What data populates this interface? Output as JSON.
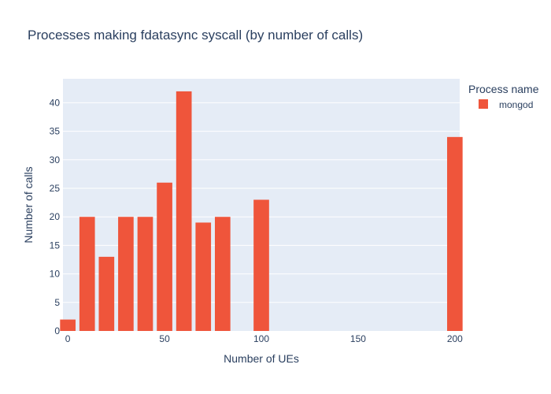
{
  "chart_data": {
    "type": "bar",
    "title": "Processes making fdatasync syscall (by number of calls)",
    "xlabel": "Number of UEs",
    "ylabel": "Number of calls",
    "xlim": [
      -2.5,
      202.5
    ],
    "ylim": [
      0,
      44.2
    ],
    "xticks": [
      0,
      50,
      100,
      150,
      200
    ],
    "yticks": [
      0,
      5,
      10,
      15,
      20,
      25,
      30,
      35,
      40
    ],
    "grid": true,
    "legend": {
      "title": "Process name",
      "placement": "right"
    },
    "series": [
      {
        "name": "mongod",
        "color": "#EF553B",
        "x": [
          0,
          10,
          20,
          30,
          40,
          50,
          60,
          70,
          80,
          100,
          200
        ],
        "values": [
          2,
          20,
          13,
          20,
          20,
          26,
          42,
          19,
          20,
          23,
          34
        ]
      }
    ]
  },
  "colors": {
    "plot_bg": "#e5ecf6",
    "grid": "#ffffff",
    "text": "#2a3f5f"
  }
}
